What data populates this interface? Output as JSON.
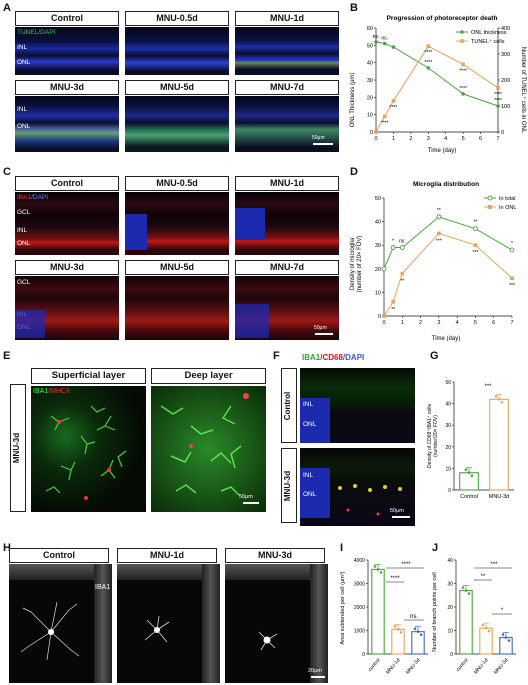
{
  "panels": {
    "A": {
      "letter": "A",
      "headers": [
        "Control",
        "MNU-0.5d",
        "MNU-1d",
        "MNU-3d",
        "MNU-5d",
        "MNU-7d"
      ],
      "stain": "TUNEL/DAPI",
      "layers": [
        "INL",
        "ONL"
      ],
      "scale": "50μm"
    },
    "B": {
      "letter": "B",
      "title": "Progression of photoreceptor death",
      "legend": [
        "ONL thickness",
        "TUNEL⁺ cells"
      ],
      "ylabel_left": "ONL Thickness (μm)",
      "ylabel_right": "Number of TUNEL⁺ cells in ONL",
      "xlabel": "Time (day)"
    },
    "C": {
      "letter": "C",
      "headers": [
        "Control",
        "MNU-0.5d",
        "MNU-1d",
        "MNU-3d",
        "MNU-5d",
        "MNU-7d"
      ],
      "stain_a": "IBA1",
      "stain_b": "/DAPI",
      "layers": [
        "GCL",
        "INL",
        "ONL"
      ],
      "scale": "50μm"
    },
    "D": {
      "letter": "D",
      "title": "Microglia distribution",
      "legend": [
        "In total",
        "In ONL"
      ],
      "ylabel": "Density of microglia",
      "ylabel2": "(number of 20× FOV)",
      "xlabel": "Time (day)"
    },
    "E": {
      "letter": "E",
      "headers": [
        "Superficial layer",
        "Deep layer"
      ],
      "side_label": "MNU-3d",
      "stain_a": "IBA1",
      "stain_b": "/MHCII",
      "scale": "50μm"
    },
    "F": {
      "letter": "F",
      "stain_a": "IBA1",
      "stain_b": "/CD68",
      "stain_c": "/DAPI",
      "side_labels": [
        "Control",
        "MNU-3d"
      ],
      "layers": [
        "INL",
        "ONL"
      ],
      "scale": "50μm"
    },
    "G": {
      "letter": "G",
      "ylabel": "Density of CD68⁺IBA1⁺ cells",
      "ylabel2": "(number/20× FOV)",
      "significance": "***"
    },
    "H": {
      "letter": "H",
      "headers": [
        "Control",
        "MNU-1d",
        "MNU-3d"
      ],
      "stain": "IBA1",
      "scale": "20μm"
    },
    "I": {
      "letter": "I",
      "ylabel": "Area subtended per cell (μm²)",
      "significance": [
        "****",
        "****",
        "ns."
      ]
    },
    "J": {
      "letter": "J",
      "ylabel": "Number of branch points per cell",
      "significance": [
        "**",
        "***",
        "*"
      ]
    }
  },
  "chart_data": [
    {
      "panel": "B",
      "type": "line",
      "title": "Progression of photoreceptor death",
      "xlabel": "Time (day)",
      "ylabel": "ONL Thickness (μm)",
      "ylabel_right": "Number of TUNEL⁺ cells in ONL",
      "x": [
        0,
        0.5,
        1,
        3,
        5,
        7
      ],
      "xlim": [
        0,
        7
      ],
      "ylim": [
        0,
        60
      ],
      "ylim_right": [
        0,
        400
      ],
      "yticks": [
        0,
        10,
        20,
        30,
        40,
        50,
        60
      ],
      "yticks_right": [
        0,
        100,
        200,
        300,
        400
      ],
      "series": [
        {
          "name": "ONL thickness",
          "axis": "left",
          "color": "#4aa63c",
          "values": [
            52,
            51,
            49,
            37,
            22,
            15
          ],
          "labels": [
            "ns.",
            "ns.",
            "",
            "****",
            "****",
            "****"
          ]
        },
        {
          "name": "TUNEL⁺ cells",
          "axis": "right",
          "color": "#e8a25c",
          "values": [
            0,
            60,
            120,
            330,
            260,
            170
          ],
          "labels": [
            "",
            "****",
            "****",
            "****",
            "****",
            "****"
          ]
        }
      ]
    },
    {
      "panel": "D",
      "type": "line",
      "title": "Microglia distribution",
      "xlabel": "Time (day)",
      "ylabel": "Density of microglia (number of 20× FOV)",
      "x": [
        0,
        0.5,
        1,
        3,
        5,
        7
      ],
      "xlim": [
        0,
        7
      ],
      "ylim": [
        0,
        50
      ],
      "yticks": [
        0,
        10,
        20,
        30,
        40,
        50
      ],
      "series": [
        {
          "name": "In total",
          "color": "#4aa63c",
          "values": [
            20,
            29,
            29,
            42,
            37,
            28
          ],
          "labels": [
            "",
            "*",
            "ns.",
            "**",
            "**",
            "*"
          ]
        },
        {
          "name": "In ONL",
          "color": "#e8a25c",
          "values": [
            0,
            6,
            18,
            35,
            30,
            16
          ],
          "labels": [
            "",
            "**",
            "**",
            "***",
            "***",
            "***"
          ]
        }
      ]
    },
    {
      "panel": "G",
      "type": "bar",
      "categories": [
        "Control",
        "MNU-3d"
      ],
      "values": [
        8,
        42
      ],
      "ylim": [
        0,
        50
      ],
      "yticks": [
        0,
        10,
        20,
        30,
        40,
        50
      ],
      "colors": [
        "#4aa63c",
        "#e8a25c"
      ]
    },
    {
      "panel": "I",
      "type": "bar",
      "categories": [
        "control",
        "MNU-1d",
        "MNU-3d"
      ],
      "values": [
        3600,
        1050,
        950
      ],
      "ylim": [
        0,
        4000
      ],
      "yticks": [
        0,
        1000,
        2000,
        3000,
        4000
      ],
      "colors": [
        "#4aa63c",
        "#e8a25c",
        "#4169c8"
      ]
    },
    {
      "panel": "J",
      "type": "bar",
      "categories": [
        "control",
        "MNU-1d",
        "MNU-3d"
      ],
      "values": [
        27,
        11,
        7
      ],
      "ylim": [
        0,
        40
      ],
      "yticks": [
        0,
        10,
        20,
        30,
        40
      ],
      "colors": [
        "#4aa63c",
        "#e8a25c",
        "#4169c8"
      ]
    }
  ]
}
